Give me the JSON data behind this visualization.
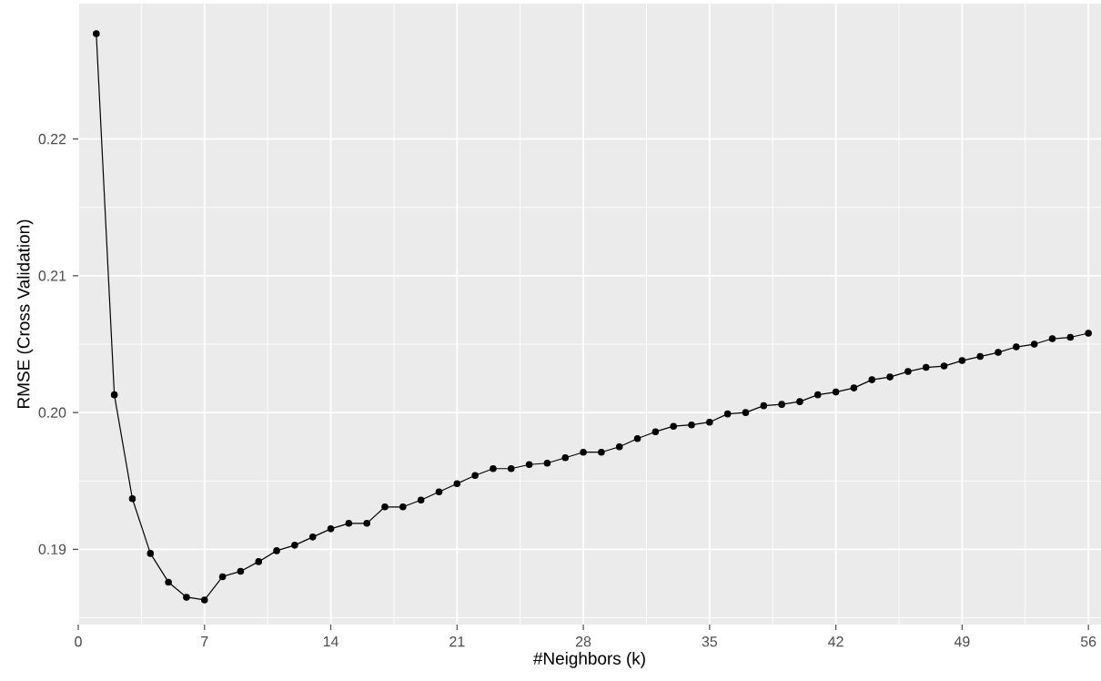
{
  "chart_data": {
    "type": "line",
    "xlabel": "#Neighbors (k)",
    "ylabel": "RMSE (Cross Validation)",
    "x": [
      1,
      2,
      3,
      4,
      5,
      6,
      7,
      8,
      9,
      10,
      11,
      12,
      13,
      14,
      15,
      16,
      17,
      18,
      19,
      20,
      21,
      22,
      23,
      24,
      25,
      26,
      27,
      28,
      29,
      30,
      31,
      32,
      33,
      34,
      35,
      36,
      37,
      38,
      39,
      40,
      41,
      42,
      43,
      44,
      45,
      46,
      47,
      48,
      49,
      50,
      51,
      52,
      53,
      54,
      55,
      56
    ],
    "values": [
      0.2277,
      0.2013,
      0.1937,
      0.1897,
      0.1876,
      0.1865,
      0.1863,
      0.188,
      0.1884,
      0.1891,
      0.1899,
      0.1903,
      0.1909,
      0.1915,
      0.1919,
      0.1919,
      0.1931,
      0.1931,
      0.1936,
      0.1942,
      0.1948,
      0.1954,
      0.1959,
      0.1959,
      0.1962,
      0.1963,
      0.1967,
      0.1971,
      0.1971,
      0.1975,
      0.1981,
      0.1986,
      0.199,
      0.1991,
      0.1993,
      0.1999,
      0.2,
      0.2005,
      0.2006,
      0.2008,
      0.2013,
      0.2015,
      0.2018,
      0.2024,
      0.2026,
      0.203,
      0.2033,
      0.2034,
      0.2038,
      0.2041,
      0.2044,
      0.2048,
      0.205,
      0.2054,
      0.2055,
      0.2058
    ],
    "color": "#000000",
    "marker": "circle",
    "line_style": "solid",
    "grid": true,
    "xlim": [
      0,
      56.7
    ],
    "ylim": [
      0.1845,
      0.2299
    ],
    "xticks": [
      0,
      7,
      14,
      21,
      28,
      35,
      42,
      49,
      56
    ],
    "yticks": [
      {
        "value": 0.19,
        "label": "0.19"
      },
      {
        "value": 0.2,
        "label": "0.20"
      },
      {
        "value": 0.21,
        "label": "0.21"
      },
      {
        "value": 0.22,
        "label": "0.22"
      }
    ]
  }
}
